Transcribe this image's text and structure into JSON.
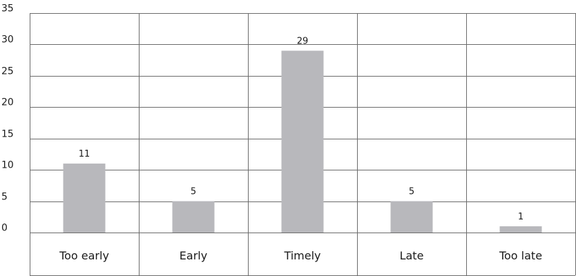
{
  "chart_data": {
    "type": "bar",
    "categories": [
      "Too early",
      "Early",
      "Timely",
      "Late",
      "Too late"
    ],
    "values": [
      11,
      5,
      29,
      5,
      1
    ],
    "data_labels": [
      "11",
      "5",
      "29",
      "5",
      "1"
    ],
    "title": "",
    "xlabel": "",
    "ylabel": "",
    "ylim": [
      0,
      35
    ],
    "yticks": [
      0,
      5,
      10,
      15,
      20,
      25,
      30,
      35
    ],
    "ytick_labels": [
      "0",
      "5",
      "10",
      "15",
      "20",
      "25",
      "30",
      "35"
    ],
    "grid": true,
    "legend": "none",
    "bar_color": "#b8b8bc",
    "grid_color": "#6b6b6b",
    "text_color": "#1a1a1a"
  }
}
